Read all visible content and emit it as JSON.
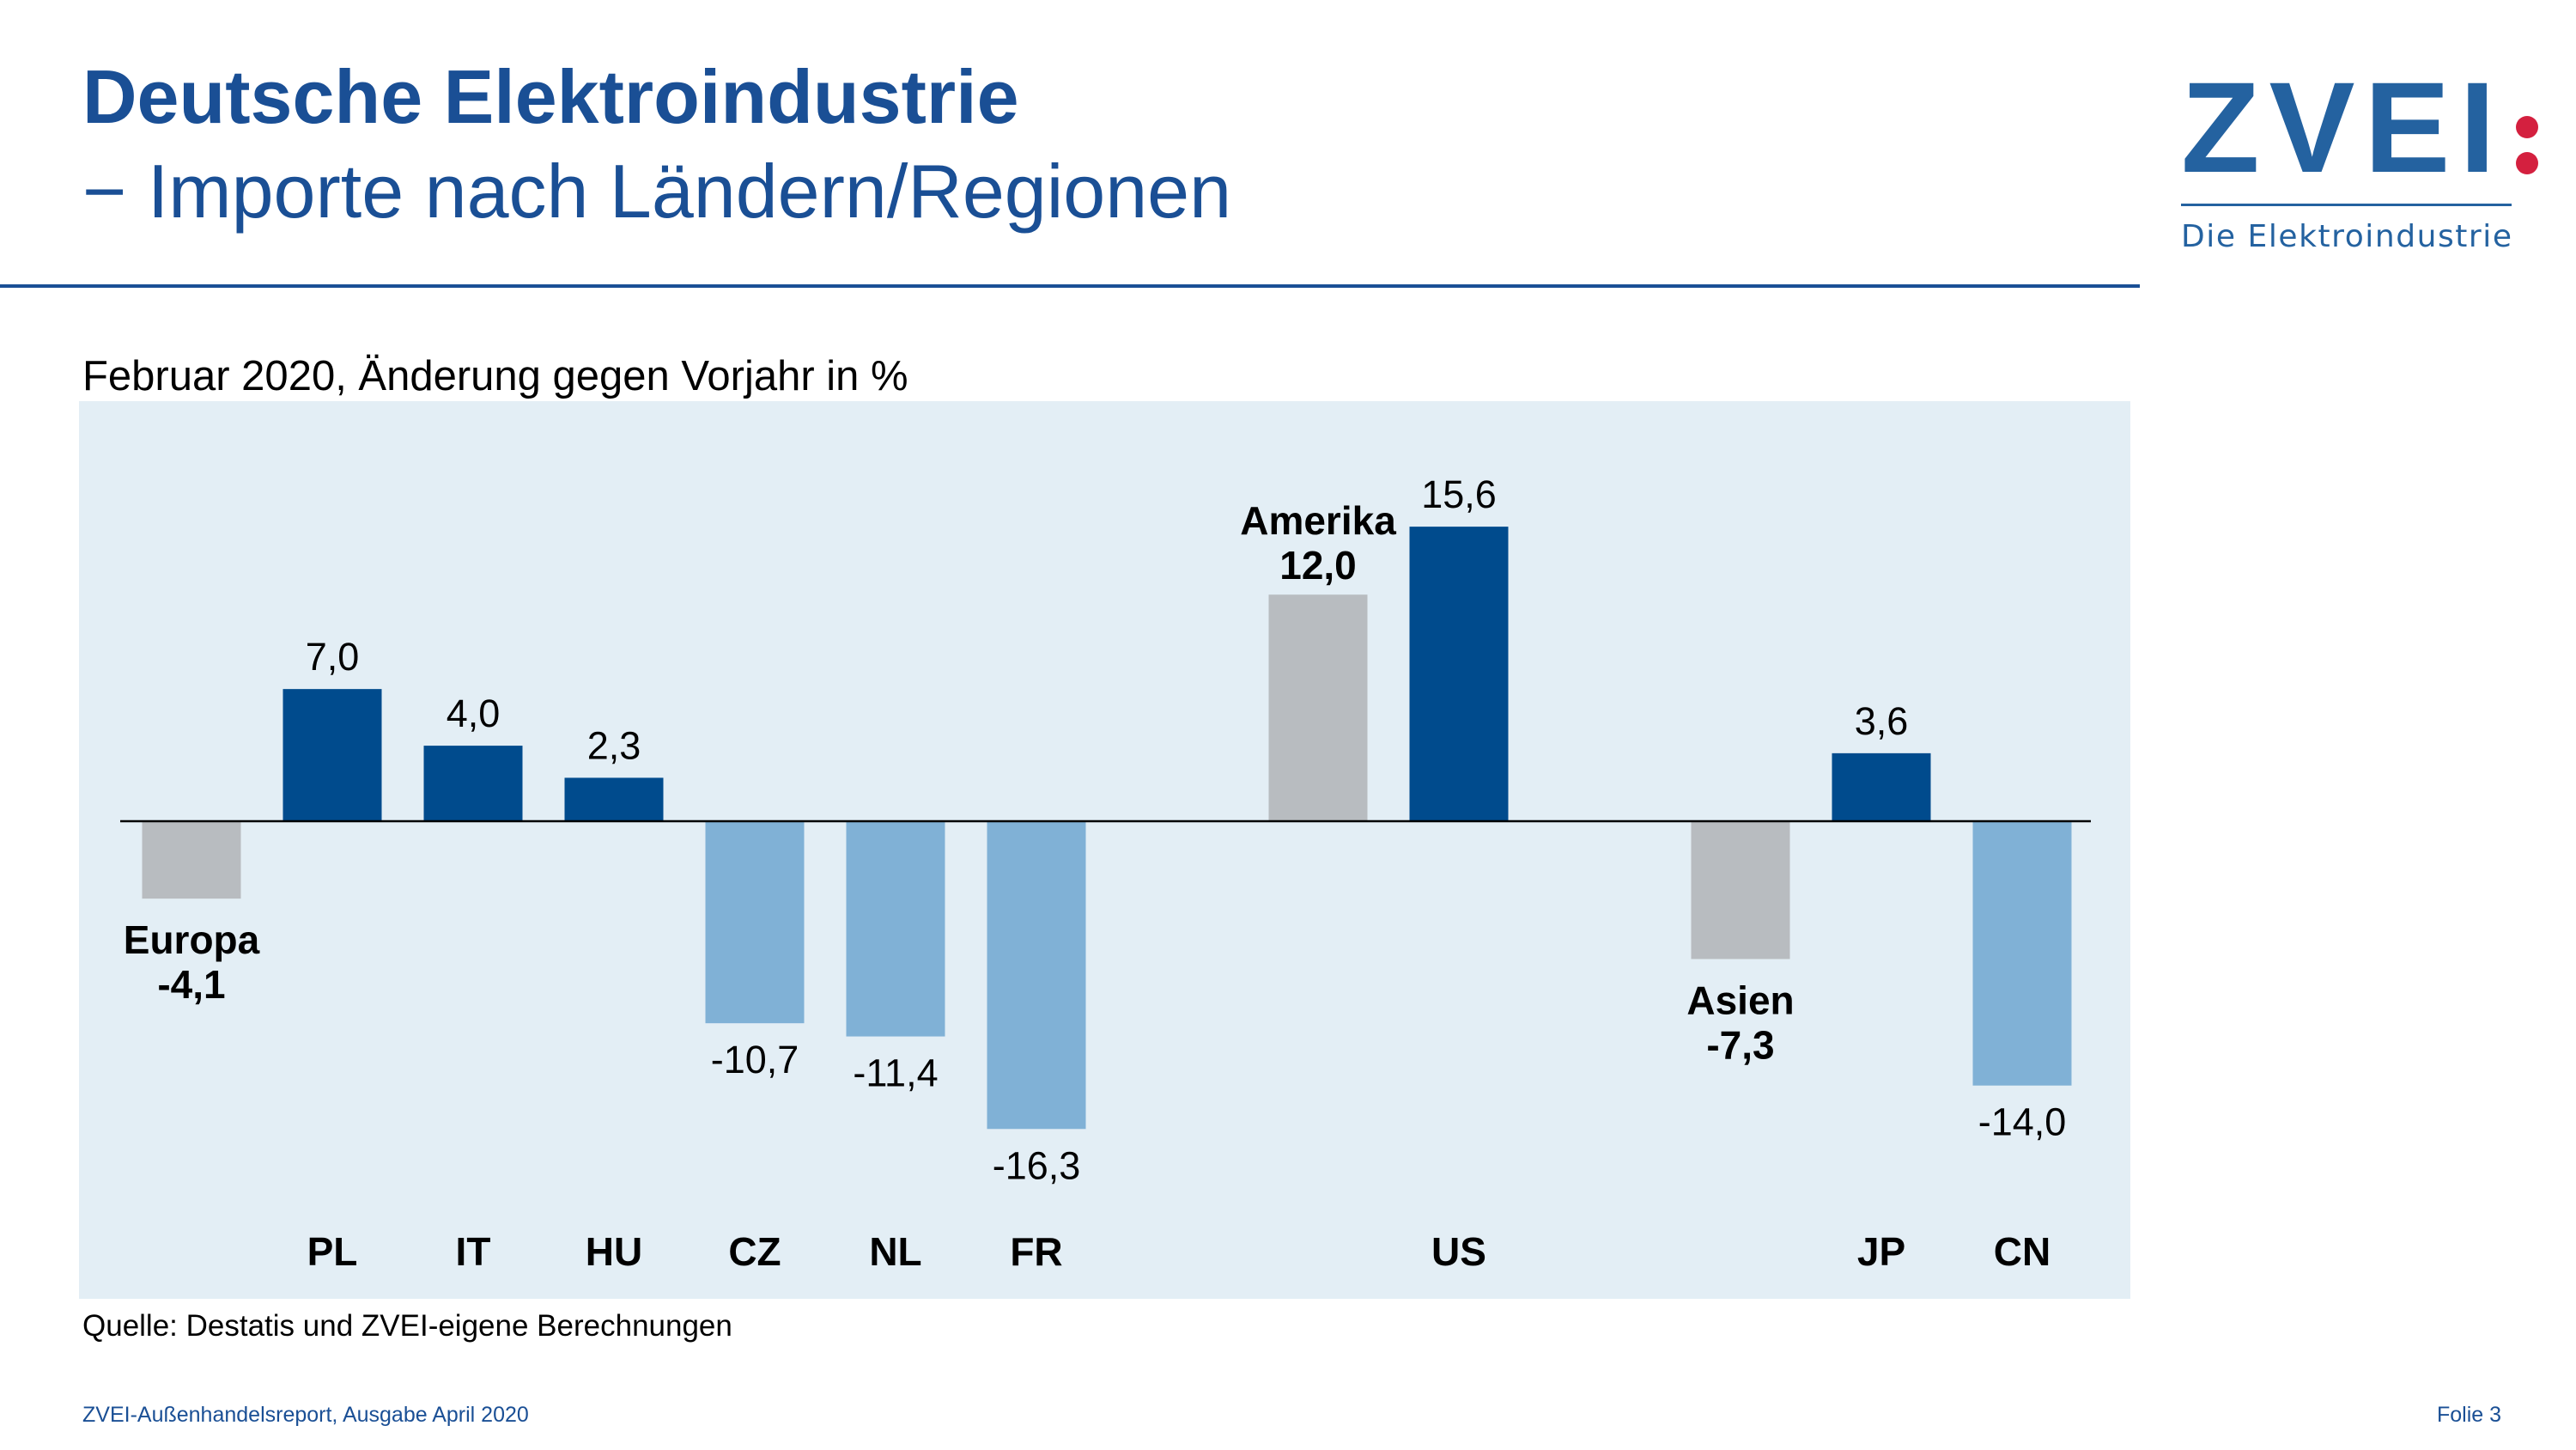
{
  "header": {
    "title": "Deutsche Elektroindustrie",
    "subtitle": "− Importe nach Ländern/Regionen"
  },
  "logo": {
    "wordmark": "ZVEI:",
    "tagline": "Die Elektroindustrie",
    "colors": {
      "blue": "#2462a0",
      "red": "#d4203f"
    }
  },
  "chart_data": {
    "type": "bar",
    "title": "Februar 2020, Änderung gegen Vorjahr in %",
    "xlabel": "",
    "ylabel": "",
    "grid": false,
    "legend": "none",
    "categories": [
      "Europa",
      "PL",
      "IT",
      "HU",
      "CZ",
      "NL",
      "FR",
      "Amerika",
      "US",
      "Asien",
      "JP",
      "CN"
    ],
    "values": [
      -4.1,
      7.0,
      4.0,
      2.3,
      -10.7,
      -11.4,
      -16.3,
      12.0,
      15.6,
      -7.3,
      3.6,
      -14.0
    ],
    "aggregate": [
      true,
      false,
      false,
      false,
      false,
      false,
      false,
      true,
      false,
      true,
      false,
      false
    ],
    "colors": {
      "positive": "#004b8d",
      "negative": "#80b1d6",
      "aggregate": "#b8bcc0",
      "background": "#e3eef5"
    }
  },
  "source": "Quelle: Destatis und ZVEI-eigene Berechnungen",
  "footer": {
    "left": "ZVEI-Außenhandelsreport, Ausgabe April 2020",
    "right": "Folie 3"
  }
}
